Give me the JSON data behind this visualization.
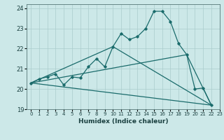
{
  "xlabel": "Humidex (Indice chaleur)",
  "bg_color": "#cce8e8",
  "grid_color": "#aacccc",
  "line_color": "#1a6b6b",
  "xlim": [
    -0.5,
    23
  ],
  "ylim": [
    19,
    24.2
  ],
  "xticks": [
    0,
    1,
    2,
    3,
    4,
    5,
    6,
    7,
    8,
    9,
    10,
    11,
    12,
    13,
    14,
    15,
    16,
    17,
    18,
    19,
    20,
    21,
    22,
    23
  ],
  "yticks": [
    19,
    20,
    21,
    22,
    23,
    24
  ],
  "main_line": [
    [
      0,
      20.3
    ],
    [
      1,
      20.5
    ],
    [
      2,
      20.6
    ],
    [
      3,
      20.75
    ],
    [
      4,
      20.2
    ],
    [
      5,
      20.6
    ],
    [
      6,
      20.55
    ],
    [
      7,
      21.1
    ],
    [
      8,
      21.5
    ],
    [
      9,
      21.1
    ],
    [
      10,
      22.1
    ],
    [
      11,
      22.75
    ],
    [
      12,
      22.45
    ],
    [
      13,
      22.6
    ],
    [
      14,
      23.0
    ],
    [
      15,
      23.85
    ],
    [
      16,
      23.85
    ],
    [
      17,
      23.35
    ],
    [
      18,
      22.25
    ],
    [
      19,
      21.7
    ],
    [
      20,
      20.0
    ],
    [
      21,
      20.05
    ],
    [
      22,
      19.2
    ]
  ],
  "triangle_line1": [
    [
      0,
      20.3
    ],
    [
      10,
      22.1
    ],
    [
      22,
      19.2
    ]
  ],
  "triangle_line2": [
    [
      0,
      20.3
    ],
    [
      19,
      21.7
    ],
    [
      22,
      19.2
    ]
  ],
  "straight_line": [
    [
      0,
      20.3
    ],
    [
      22,
      19.2
    ]
  ]
}
